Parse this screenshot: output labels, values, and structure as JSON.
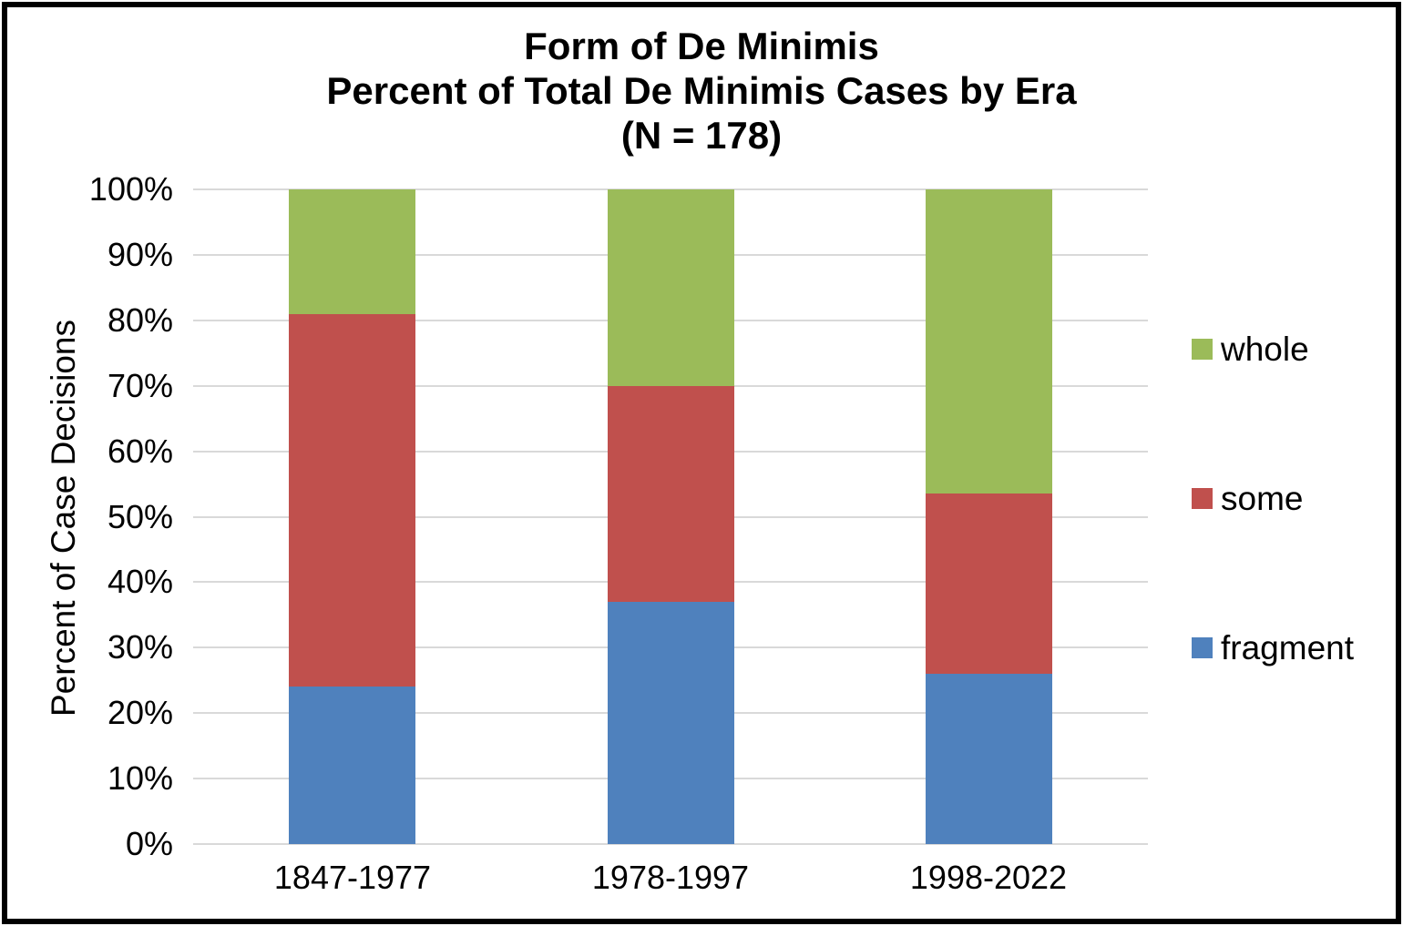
{
  "chart_data": {
    "type": "bar",
    "stacked": true,
    "title_lines": [
      "Form of De Minimis",
      "Percent of Total De Minimis Cases by Era",
      "(N = 178)"
    ],
    "categories": [
      "1847-1977",
      "1978-1997",
      "1998-2022"
    ],
    "series": [
      {
        "name": "fragment",
        "color": "#4F81BD",
        "values": [
          24,
          37,
          26
        ]
      },
      {
        "name": "some",
        "color": "#C0504D",
        "values": [
          57,
          33,
          27.5
        ]
      },
      {
        "name": "whole",
        "color": "#9BBB59",
        "values": [
          19,
          30,
          46.5
        ]
      }
    ],
    "xlabel": "",
    "ylabel": "Percent of Case Decisions",
    "ylim": [
      0,
      100
    ],
    "ytick_labels": [
      "0%",
      "10%",
      "20%",
      "30%",
      "40%",
      "50%",
      "60%",
      "70%",
      "80%",
      "90%",
      "100%"
    ],
    "grid": true,
    "gridline_color": "#d9d9d9",
    "legend_position": "right",
    "legend_order": [
      "whole",
      "some",
      "fragment"
    ]
  },
  "colors": {
    "frame_border": "#000000",
    "background": "#ffffff",
    "text": "#000000"
  }
}
